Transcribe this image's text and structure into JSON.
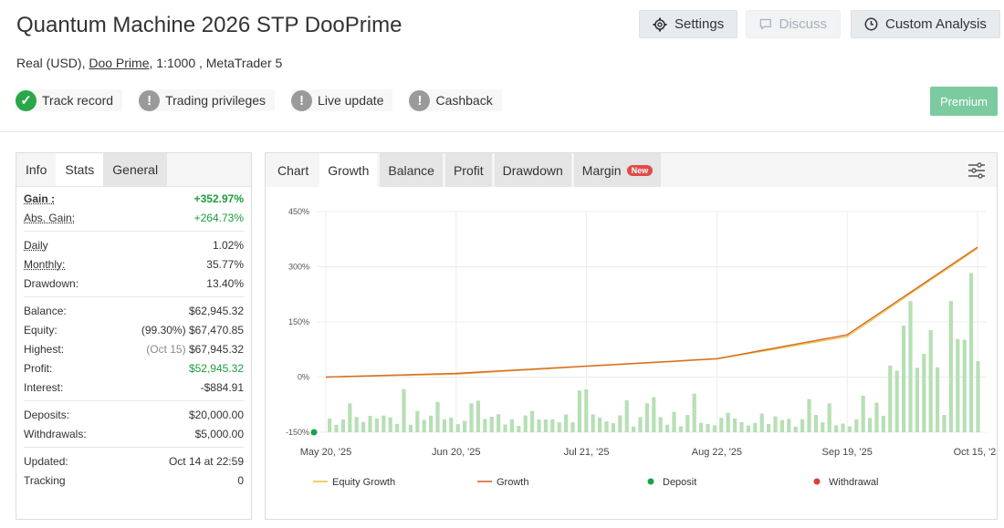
{
  "header": {
    "title": "Quantum Machine 2026 STP DooPrime",
    "account_type": "Real (USD), ",
    "broker": "Doo Prime",
    "account_rest": ", 1:1000 , MetaTrader 5"
  },
  "actions": {
    "settings": "Settings",
    "discuss": "Discuss",
    "custom_analysis": "Custom Analysis",
    "premium": "Premium"
  },
  "badges": [
    {
      "label": "Track record",
      "status": "verified"
    },
    {
      "label": "Trading privileges",
      "status": "unverified"
    },
    {
      "label": "Live update",
      "status": "unverified"
    },
    {
      "label": "Cashback",
      "status": "unverified"
    }
  ],
  "left_tabs": [
    "Info",
    "Stats",
    "General"
  ],
  "stats": {
    "gain": {
      "label": "Gain :",
      "value": "+352.97%"
    },
    "abs_gain": {
      "label": "Abs. Gain:",
      "value": "+264.73%"
    },
    "daily": {
      "label": "Daily",
      "value": "1.02%"
    },
    "monthly": {
      "label": "Monthly:",
      "value": "35.77%"
    },
    "drawdown": {
      "label": "Drawdown:",
      "value": "13.40%"
    },
    "balance": {
      "label": "Balance:",
      "value": "$62,945.32"
    },
    "equity": {
      "label": "Equity:",
      "note": "(99.30%)",
      "value": "$67,470.85"
    },
    "highest": {
      "label": "Highest:",
      "note": "(Oct 15)",
      "value": "$67,945.32"
    },
    "profit": {
      "label": "Profit:",
      "value": "$52,945.32"
    },
    "interest": {
      "label": "Interest:",
      "value": "-$884.91"
    },
    "deposits": {
      "label": "Deposits:",
      "value": "$20,000.00"
    },
    "withdrawals": {
      "label": "Withdrawals:",
      "value": "$5,000.00"
    },
    "updated": {
      "label": "Updated:",
      "value": "Oct 14 at 22:59"
    },
    "tracking": {
      "label": "Tracking",
      "value": "0"
    }
  },
  "chart_tabs": {
    "chart": "Chart",
    "growth": "Growth",
    "balance": "Balance",
    "profit": "Profit",
    "drawdown": "Drawdown",
    "margin": "Margin",
    "new_badge": "New"
  },
  "colors": {
    "green": "#1c9c3c",
    "growth_line": "#d9682a",
    "equity_line": "#e3c84a",
    "bars": "#b7dfb5",
    "premium": "#7ccba0"
  },
  "chart_data": {
    "type": "line",
    "ylim": [
      -150,
      450
    ],
    "yticks": [
      "450%",
      "300%",
      "150%",
      "0%",
      "-150%"
    ],
    "xticks": [
      "May 20, '25",
      "Jun 20, '25",
      "Jul 21, '25",
      "Aug 22, '25",
      "Sep 19, '25",
      "Oct 15, '25"
    ],
    "legend": [
      "Equity Growth",
      "Growth",
      "Deposit",
      "Withdrawal"
    ],
    "legend_position": "bottom",
    "series": [
      {
        "name": "Growth",
        "x": [
          "May 20, '25",
          "Jun 20, '25",
          "Jul 21, '25",
          "Aug 22, '25",
          "Sep 19, '25",
          "Oct 15, '25"
        ],
        "values": [
          0,
          10,
          30,
          50,
          115,
          353
        ]
      },
      {
        "name": "Equity Growth",
        "x": [
          "May 20, '25",
          "Jun 20, '25",
          "Jul 21, '25",
          "Aug 22, '25",
          "Sep 19, '25",
          "Oct 15, '25"
        ],
        "values": [
          0,
          8,
          29,
          49,
          110,
          350
        ]
      }
    ],
    "deposits": [
      {
        "x": "May 20, '25",
        "value": -150
      }
    ]
  }
}
